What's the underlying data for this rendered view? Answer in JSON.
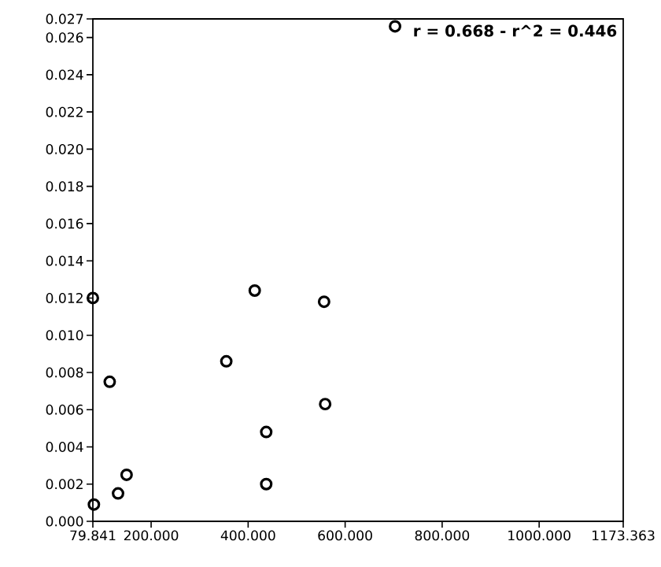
{
  "chart_data": {
    "type": "scatter",
    "marker": "circle",
    "color": "#000000",
    "x": [
      79.841,
      413.6,
      556.6,
      355.0,
      114.6,
      558.8,
      437.3,
      149.4,
      131.8,
      437.3,
      82.0,
      702.9
    ],
    "values": [
      0.012,
      0.0124,
      0.0118,
      0.0086,
      0.0075,
      0.0063,
      0.0048,
      0.0025,
      0.0015,
      0.002,
      0.0009,
      0.0266
    ],
    "xlim": [
      79.841,
      1173.363
    ],
    "ylim": [
      0,
      0.027
    ],
    "xticks": [
      79.841,
      {
        "value": 200,
        "label": "200.000"
      },
      {
        "value": 400,
        "label": "400.000"
      },
      {
        "value": 600,
        "label": "600.000"
      },
      {
        "value": 800,
        "label": "800.000"
      },
      {
        "value": 1000,
        "label": "1000.000"
      },
      1173.363
    ],
    "yticks": [
      {
        "value": 0,
        "label": "0.000"
      },
      {
        "value": 0.002,
        "label": "0.002"
      },
      {
        "value": 0.004,
        "label": "0.004"
      },
      {
        "value": 0.006,
        "label": "0.006"
      },
      {
        "value": 0.008,
        "label": "0.008"
      },
      {
        "value": 0.01,
        "label": "0.010"
      },
      {
        "value": 0.012,
        "label": "0.012"
      },
      {
        "value": 0.014,
        "label": "0.014"
      },
      {
        "value": 0.016,
        "label": "0.016"
      },
      {
        "value": 0.018,
        "label": "0.018"
      },
      {
        "value": 0.02,
        "label": "0.020"
      },
      {
        "value": 0.022,
        "label": "0.022"
      },
      {
        "value": 0.024,
        "label": "0.024"
      },
      {
        "value": 0.026,
        "label": "0.026"
      },
      0.027
    ],
    "annotations": [
      "r = 0.668 - r^2 = 0.446"
    ]
  }
}
